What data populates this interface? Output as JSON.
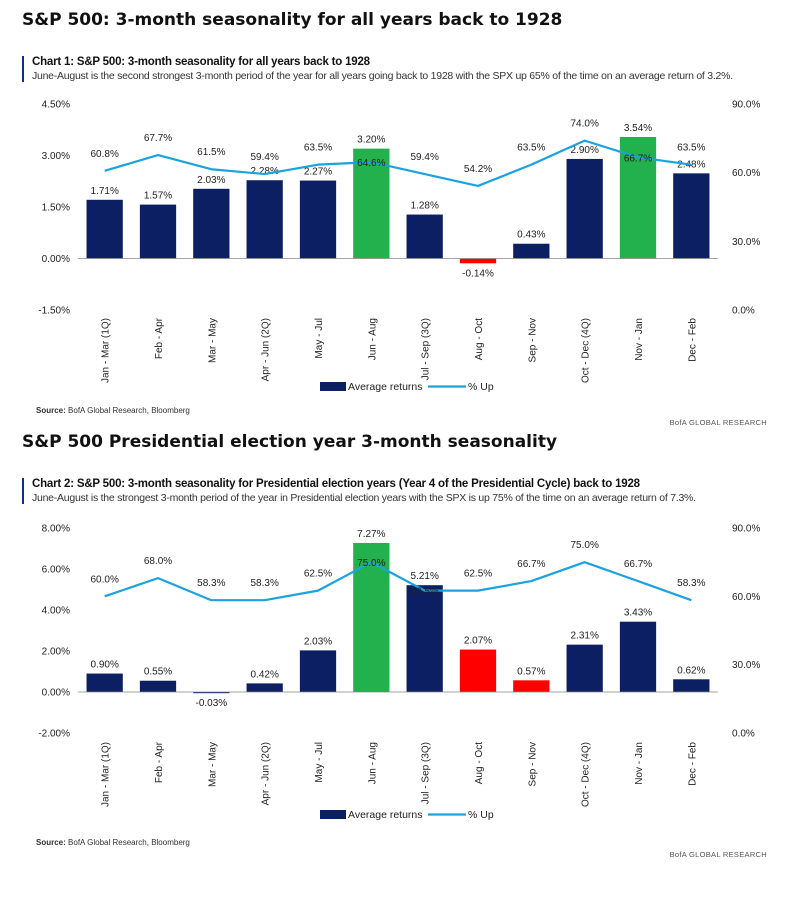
{
  "sections": [
    {
      "heading": "S&P 500: 3-month seasonality for all years back to 1928",
      "chart_title": "Chart 1: S&P 500: 3-month seasonality for all years back to 1928",
      "chart_subtitle": "June-August is the second strongest 3-month period of the year for all years going back to 1928 with the SPX up 65% of the time on an average return of 3.2%.",
      "source_label": "Source:",
      "source_text": "BofA Global Research, Bloomberg",
      "brand": "BofA GLOBAL RESEARCH"
    },
    {
      "heading": "S&P 500 Presidential election year 3-month seasonality",
      "chart_title": "Chart 2: S&P 500: 3-month seasonality for Presidential election years (Year 4 of the Presidential Cycle) back to 1928",
      "chart_subtitle": "June-August is the strongest 3-month period of the year in Presidential election years with the SPX is up 75% of the time on an average return of 7.3%.",
      "source_label": "Source:",
      "source_text": "BofA Global Research, Bloomberg",
      "brand": "BofA GLOBAL RESEARCH"
    }
  ],
  "chart_data": [
    {
      "type": "bar",
      "categories": [
        "Jan - Mar (1Q)",
        "Feb - Apr",
        "Mar - May",
        "Apr - Jun (2Q)",
        "May - Jul",
        "Jun - Aug",
        "Jul - Sep (3Q)",
        "Aug - Oct",
        "Sep - Nov",
        "Oct - Dec (4Q)",
        "Nov - Jan",
        "Dec - Feb"
      ],
      "series": [
        {
          "name": "Average returns",
          "type": "bar",
          "axis": "left",
          "values": [
            1.71,
            1.57,
            2.03,
            2.28,
            2.27,
            3.2,
            1.28,
            -0.14,
            0.43,
            2.9,
            3.54,
            2.48
          ],
          "labels": [
            "1.71%",
            "1.57%",
            "2.03%",
            "2.28%",
            "2.27%",
            "3.20%",
            "1.28%",
            "-0.14%",
            "0.43%",
            "2.90%",
            "3.54%",
            "2.48%"
          ],
          "bar_colors": [
            "#0d1f63",
            "#0d1f63",
            "#0d1f63",
            "#0d1f63",
            "#0d1f63",
            "#22b14c",
            "#0d1f63",
            "#ff0000",
            "#0d1f63",
            "#0d1f63",
            "#22b14c",
            "#0d1f63"
          ]
        },
        {
          "name": "% Up",
          "type": "line",
          "axis": "right",
          "values": [
            60.8,
            67.7,
            61.5,
            59.4,
            63.5,
            64.6,
            59.4,
            54.2,
            63.5,
            74.0,
            66.7,
            63.5
          ],
          "labels": [
            "60.8%",
            "67.7%",
            "61.5%",
            "59.4%",
            "63.5%",
            "64.6%",
            "59.4%",
            "54.2%",
            "63.5%",
            "74.0%",
            "66.7%",
            "63.5%"
          ]
        }
      ],
      "ylim": [
        -1.5,
        4.5
      ],
      "yticks": [
        "-1.50%",
        "0.00%",
        "1.50%",
        "3.00%",
        "4.50%"
      ],
      "y2lim": [
        0,
        90
      ],
      "y2ticks": [
        "0.0%",
        "30.0%",
        "60.0%",
        "90.0%"
      ],
      "legend": "bottom-center",
      "grid": false
    },
    {
      "type": "bar",
      "categories": [
        "Jan - Mar (1Q)",
        "Feb - Apr",
        "Mar - May",
        "Apr - Jun (2Q)",
        "May - Jul",
        "Jun - Aug",
        "Jul - Sep (3Q)",
        "Aug - Oct",
        "Sep - Nov",
        "Oct - Dec (4Q)",
        "Nov - Jan",
        "Dec - Feb"
      ],
      "series": [
        {
          "name": "Average returns",
          "type": "bar",
          "axis": "left",
          "values": [
            0.9,
            0.55,
            -0.03,
            0.42,
            2.03,
            7.27,
            5.21,
            2.07,
            0.57,
            2.31,
            3.43,
            0.62
          ],
          "labels": [
            "0.90%",
            "0.55%",
            "-0.03%",
            "0.42%",
            "2.03%",
            "7.27%",
            "5.21%",
            "2.07%",
            "0.57%",
            "2.31%",
            "3.43%",
            "0.62%"
          ],
          "bar_colors": [
            "#0d1f63",
            "#0d1f63",
            "#0d1f63",
            "#0d1f63",
            "#0d1f63",
            "#22b14c",
            "#0d1f63",
            "#ff0000",
            "#ff0000",
            "#0d1f63",
            "#0d1f63",
            "#0d1f63"
          ]
        },
        {
          "name": "% Up",
          "type": "line",
          "axis": "right",
          "values": [
            60.0,
            68.0,
            58.3,
            58.3,
            62.5,
            75.0,
            62.5,
            62.5,
            66.7,
            75.0,
            66.7,
            58.3
          ],
          "labels": [
            "60.0%",
            "68.0%",
            "58.3%",
            "58.3%",
            "62.5%",
            "75.0%",
            "62.5%",
            "62.5%",
            "66.7%",
            "75.0%",
            "66.7%",
            "58.3%"
          ]
        }
      ],
      "ylim": [
        -2,
        8
      ],
      "yticks": [
        "-2.00%",
        "0.00%",
        "2.00%",
        "4.00%",
        "6.00%",
        "8.00%"
      ],
      "y2lim": [
        0,
        90
      ],
      "y2ticks": [
        "0.0%",
        "30.0%",
        "60.0%",
        "90.0%"
      ],
      "legend": "bottom-center",
      "grid": false
    }
  ],
  "colors": {
    "bar": "#0d1f63",
    "line": "#1aa3e0",
    "accent_rule": "#0b2f8a"
  }
}
